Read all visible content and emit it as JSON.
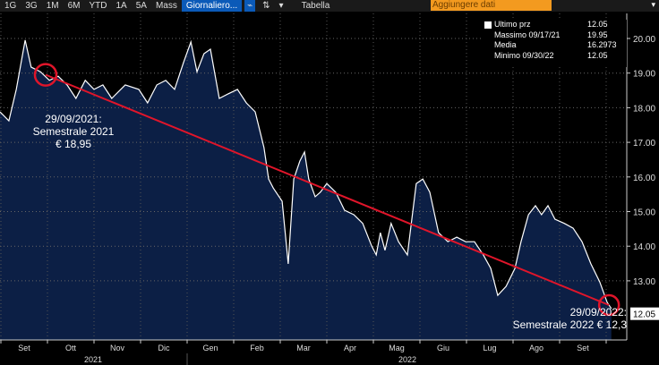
{
  "toolbar": {
    "ranges": [
      "1G",
      "3G",
      "1M",
      "6M",
      "YTD",
      "1A",
      "5A",
      "Mass"
    ],
    "frequency": "Giornaliero...",
    "table": "Tabella",
    "add_data": "Aggiungere dati"
  },
  "legend": [
    {
      "label": "Ultimo prz",
      "value": "12.05"
    },
    {
      "label": "Massimo 09/17/21",
      "value": "19.95"
    },
    {
      "label": "Media",
      "value": "16.2973"
    },
    {
      "label": "Minimo 09/30/22",
      "value": "12.05"
    }
  ],
  "annotations": {
    "start": "29/09/2021:\nSemestrale 2021\n€ 18,95",
    "end": "29/09/2022:\nSemestrale 2022 € 12,3"
  },
  "colors": {
    "line": "#ffffff",
    "fill": "#0c1f45",
    "trend": "#e0152a"
  },
  "chart_data": {
    "type": "area",
    "x_unit": "months since Sep 2021",
    "x": [
      0,
      0.19,
      0.35,
      0.54,
      0.67,
      0.87,
      1.06,
      1.25,
      1.44,
      1.63,
      1.83,
      2.02,
      2.21,
      2.4,
      2.69,
      2.98,
      3.17,
      3.37,
      3.56,
      3.75,
      3.94,
      4.1,
      4.23,
      4.38,
      4.52,
      4.71,
      4.9,
      5.1,
      5.29,
      5.48,
      5.67,
      5.77,
      5.87,
      6.06,
      6.19,
      6.31,
      6.44,
      6.54,
      6.63,
      6.77,
      6.88,
      7.02,
      7.21,
      7.4,
      7.6,
      7.79,
      7.98,
      8.08,
      8.17,
      8.27,
      8.4,
      8.56,
      8.75,
      8.94,
      9.08,
      9.23,
      9.42,
      9.62,
      9.81,
      10,
      10.19,
      10.38,
      10.54,
      10.69,
      10.87,
      11.06,
      11.19,
      11.35,
      11.5,
      11.63,
      11.77,
      11.92,
      12.12,
      12.31,
      12.5,
      12.69,
      12.88,
      13.04,
      13.13
    ],
    "values": [
      17.88,
      17.62,
      18.53,
      19.95,
      19.17,
      19.04,
      18.79,
      18.91,
      18.66,
      18.27,
      18.79,
      18.53,
      18.66,
      18.27,
      18.66,
      18.53,
      18.14,
      18.66,
      18.79,
      18.53,
      19.3,
      19.9,
      19.04,
      19.56,
      19.69,
      18.27,
      18.4,
      18.53,
      18.14,
      17.88,
      16.85,
      15.94,
      15.68,
      15.3,
      13.49,
      15.94,
      16.46,
      16.72,
      15.94,
      15.43,
      15.56,
      15.81,
      15.56,
      15.04,
      14.91,
      14.66,
      14.01,
      13.75,
      14.39,
      13.88,
      14.66,
      14.13,
      13.75,
      15.81,
      15.94,
      15.56,
      14.39,
      14.13,
      14.26,
      14.13,
      14.13,
      13.75,
      13.36,
      12.58,
      12.84,
      13.36,
      14.13,
      14.91,
      15.17,
      14.91,
      15.17,
      14.78,
      14.66,
      14.52,
      14.13,
      13.49,
      12.97,
      12.38,
      12.2
    ],
    "last_value": "12.05",
    "trend": {
      "from": [
        0.98,
        18.95
      ],
      "to": [
        13.08,
        12.3
      ]
    },
    "yticks": [
      "20.00",
      "19.00",
      "18.00",
      "17.00",
      "16.00",
      "15.00",
      "14.00",
      "13.00"
    ],
    "ylim": [
      12,
      20
    ],
    "months": [
      "Set",
      "Ott",
      "Nov",
      "Dic",
      "Gen",
      "Feb",
      "Mar",
      "Apr",
      "Mag",
      "Giu",
      "Lug",
      "Ago",
      "Set"
    ],
    "years": [
      "2021",
      "2022"
    ]
  }
}
